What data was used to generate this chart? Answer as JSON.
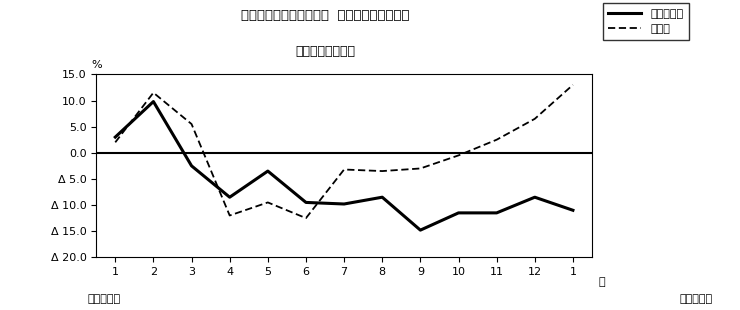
{
  "title_line1": "第２図　所定外労働時間  対前年同月比の推移",
  "title_line2": "（規模５人以上）",
  "xlabel_right": "月",
  "ylabel": "%",
  "footer_left": "平成２３年",
  "footer_right": "平成２４年",
  "legend_solid": "調査産業計",
  "legend_dashed": "製造業",
  "x_labels": [
    "1",
    "2",
    "3",
    "4",
    "5",
    "6",
    "7",
    "8",
    "9",
    "10",
    "11",
    "12",
    "1"
  ],
  "x_values": [
    1,
    2,
    3,
    4,
    5,
    6,
    7,
    8,
    9,
    10,
    11,
    12,
    13
  ],
  "solid_data": [
    3.0,
    9.8,
    -2.5,
    -8.5,
    -3.5,
    -9.5,
    -9.8,
    -8.5,
    -14.8,
    -11.5,
    -11.5,
    -8.5,
    -11.0
  ],
  "dashed_data": [
    2.0,
    11.5,
    5.5,
    -12.0,
    -9.5,
    -12.5,
    -3.2,
    -3.5,
    -3.0,
    -0.5,
    2.5,
    6.5,
    13.0
  ],
  "ylim": [
    -20.0,
    15.0
  ],
  "yticks": [
    15.0,
    10.0,
    5.0,
    0.0,
    -5.0,
    -10.0,
    -15.0,
    -20.0
  ],
  "ytick_labels": [
    "15.0",
    "10.0",
    "5.0",
    "0.0",
    "Δ 5.0",
    "Δ 10.0",
    "Δ 15.0",
    "Δ 20.0"
  ],
  "bg_color": "#ffffff",
  "line_color": "#000000",
  "fig_width": 7.4,
  "fig_height": 3.1,
  "dpi": 100
}
